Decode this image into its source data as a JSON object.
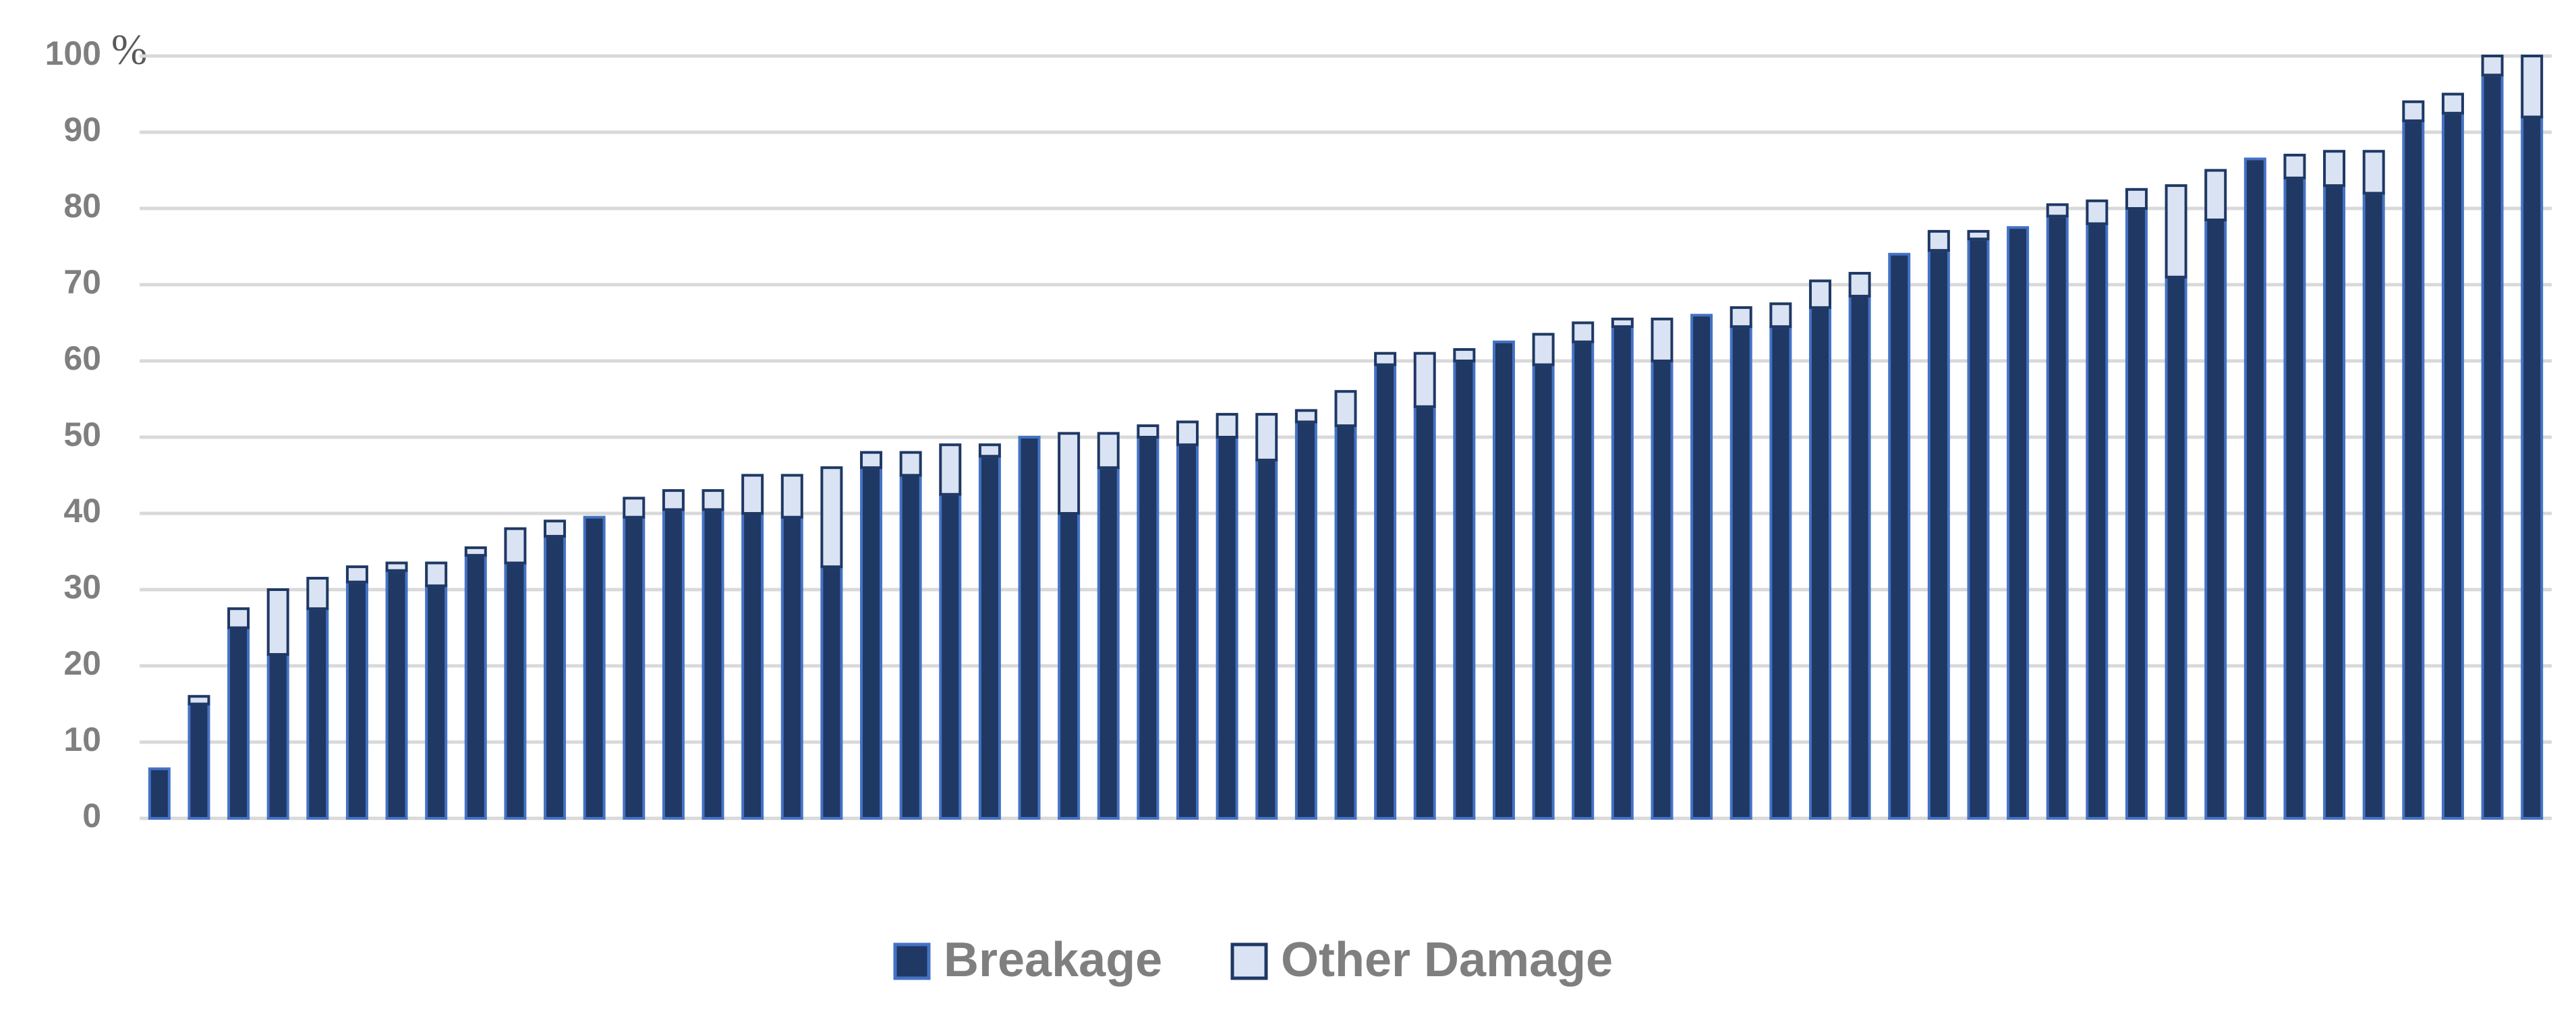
{
  "chart_data": {
    "type": "stacked_bar",
    "ylabel": "%",
    "categories": [
      null,
      null,
      null,
      null,
      null,
      null,
      null,
      null,
      null,
      null,
      null,
      null,
      null,
      null,
      null,
      null,
      null,
      null,
      null,
      null,
      null,
      null,
      null,
      null,
      null,
      null,
      null,
      null,
      null,
      null,
      null,
      null,
      null,
      null,
      null,
      null,
      null,
      null,
      null,
      null,
      null,
      null,
      null,
      null,
      null,
      null,
      null,
      null,
      null,
      null,
      null,
      null,
      null,
      null,
      null,
      null,
      null,
      null,
      null,
      null,
      null
    ],
    "series": [
      {
        "name": "Breakage",
        "color": "#1f3864",
        "edge": "#4472c4",
        "values": [
          6.5,
          15,
          25,
          21.5,
          27.5,
          31,
          32.5,
          30.5,
          34.5,
          33.5,
          37,
          39.5,
          39.5,
          40.5,
          40.5,
          40,
          39.5,
          33,
          46,
          45,
          42.5,
          47.5,
          50,
          40,
          46,
          50,
          49,
          50,
          47,
          52,
          51.5,
          59.5,
          54,
          60,
          62.5,
          59.5,
          62.5,
          64.5,
          60,
          66,
          64.5,
          64.5,
          67,
          68.5,
          74,
          74.5,
          76,
          77.5,
          79,
          78,
          80,
          71,
          78.5,
          86.5,
          84,
          83,
          82,
          91.5,
          92.5,
          97.5,
          92
        ]
      },
      {
        "name": "Other Damage",
        "color": "#dae3f3",
        "edge": "#1f3864",
        "values": [
          0,
          1,
          2.5,
          8.5,
          4,
          2,
          1,
          3,
          1,
          4.5,
          2,
          0,
          2.5,
          2.5,
          2.5,
          5,
          5.5,
          13,
          2,
          3,
          6.5,
          1.5,
          0,
          10.5,
          4.5,
          1.5,
          3,
          3,
          6,
          1.5,
          4.5,
          1.5,
          7,
          1.5,
          0,
          4,
          2.5,
          1,
          5.5,
          0,
          2.5,
          3,
          3.5,
          3,
          0,
          2.5,
          1,
          0,
          1.5,
          3,
          2.5,
          12,
          6.5,
          0,
          3,
          4.5,
          5.5,
          2.5,
          2.5,
          2.5,
          8
        ]
      }
    ],
    "ylim": [
      0,
      100
    ],
    "yticks": [
      0,
      10,
      20,
      30,
      40,
      50,
      60,
      70,
      80,
      90,
      100
    ],
    "grid": true
  }
}
